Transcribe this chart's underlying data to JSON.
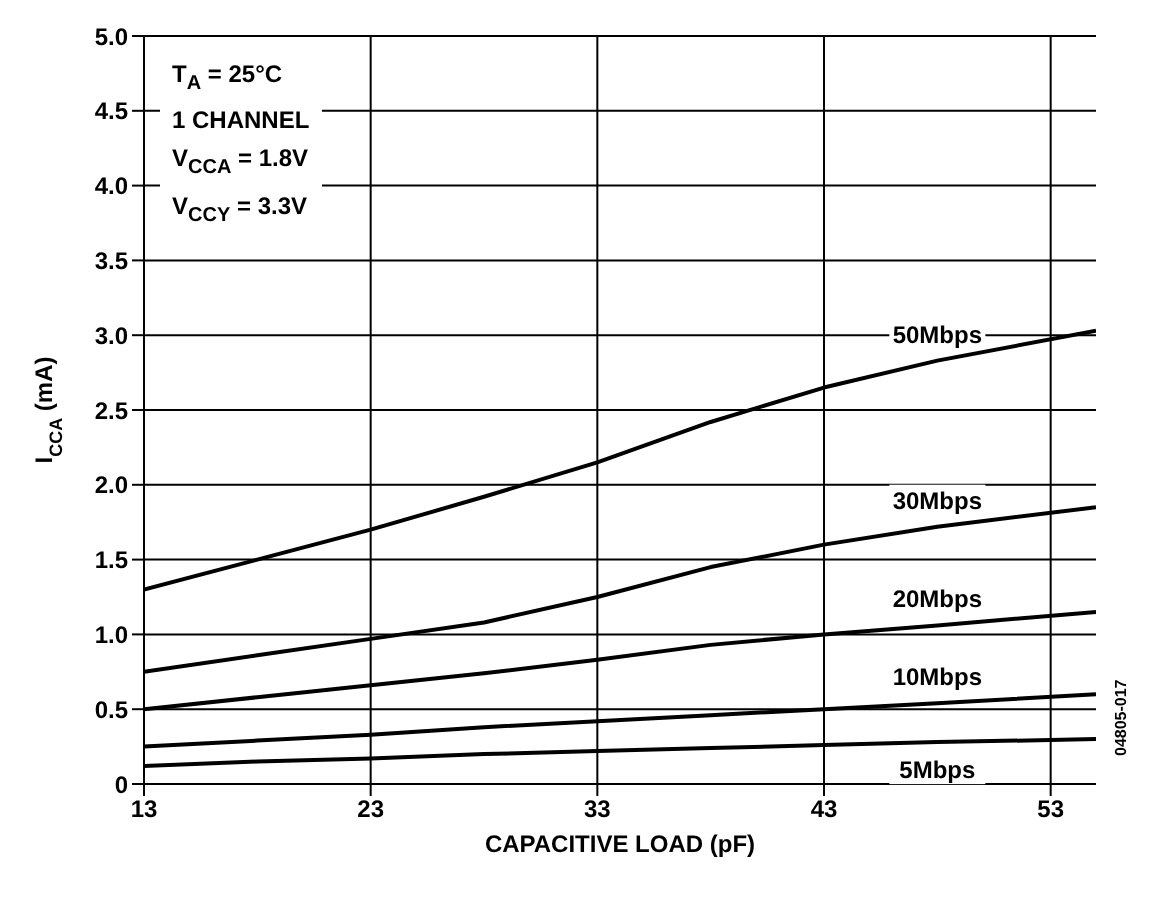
{
  "chart_data": {
    "type": "line",
    "xlabel": "CAPACITIVE LOAD (pF)",
    "ylabel": "I$_{CCA}$ (mA)",
    "x": [
      13,
      18,
      23,
      28,
      33,
      38,
      43,
      48,
      55
    ],
    "series": [
      {
        "name": "50Mbps",
        "color": "#000000",
        "values": [
          1.3,
          1.5,
          1.7,
          1.92,
          2.15,
          2.42,
          2.65,
          2.83,
          3.03
        ]
      },
      {
        "name": "30Mbps",
        "color": "#000000",
        "values": [
          0.75,
          0.86,
          0.97,
          1.08,
          1.25,
          1.45,
          1.6,
          1.72,
          1.85
        ]
      },
      {
        "name": "20Mbps",
        "color": "#000000",
        "values": [
          0.5,
          0.58,
          0.66,
          0.74,
          0.83,
          0.93,
          1.0,
          1.06,
          1.15
        ]
      },
      {
        "name": "10Mbps",
        "color": "#000000",
        "values": [
          0.25,
          0.29,
          0.33,
          0.38,
          0.42,
          0.46,
          0.5,
          0.54,
          0.6
        ]
      },
      {
        "name": "5Mbps",
        "color": "#000000",
        "values": [
          0.12,
          0.15,
          0.17,
          0.2,
          0.22,
          0.24,
          0.26,
          0.28,
          0.3
        ]
      }
    ],
    "xlim": [
      13,
      55
    ],
    "xticks": [
      13,
      23,
      33,
      43,
      53
    ],
    "ylim": [
      0,
      5
    ],
    "yticks": [
      {
        "value": 0,
        "label": "0"
      },
      {
        "value": 0.5,
        "label": "0.5"
      },
      {
        "value": 1,
        "label": "1.0"
      },
      {
        "value": 1.5,
        "label": "1.5"
      },
      {
        "value": 2,
        "label": "2.0"
      },
      {
        "value": 2.5,
        "label": "2.5"
      },
      {
        "value": 3,
        "label": "3.0"
      },
      {
        "value": 3.5,
        "label": "3.5"
      },
      {
        "value": 4,
        "label": "4.0"
      },
      {
        "value": 4.5,
        "label": "4.5"
      },
      {
        "value": 5,
        "label": "5.0"
      }
    ],
    "grid": true,
    "marker": "none",
    "line_style": "solid",
    "legend": false,
    "annotations": [
      "T$_{A}$ = 25°C",
      "1 CHANNEL",
      "V$_{CCA}$ = 1.8V",
      "V$_{CCY}$ = 3.3V",
      "04805-017"
    ]
  }
}
